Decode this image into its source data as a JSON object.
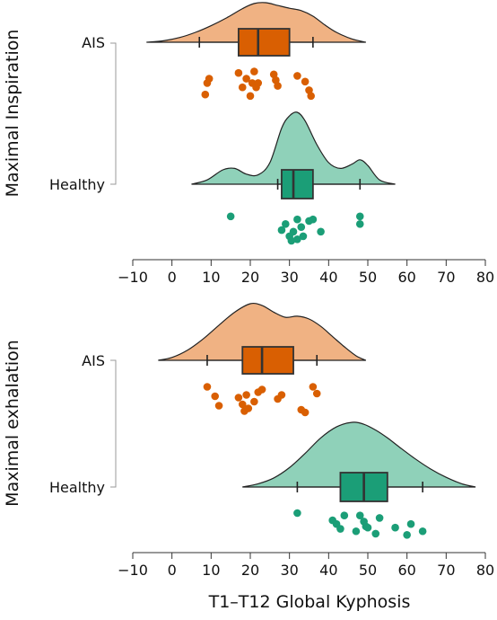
{
  "colors": {
    "ais_density": "#f0b283",
    "ais_box": "#d95f02",
    "ais_points": "#d95f02",
    "healthy_density": "#8fd1b9",
    "healthy_box": "#1b9e77",
    "healthy_points": "#1b9e77",
    "axis": "#333333",
    "outline": "#333333"
  },
  "chart_data": [
    {
      "type": "raincloud",
      "panel_label": "Maximal Inspiration",
      "xlabel": "",
      "xlim": [
        -10,
        80
      ],
      "x_ticks": [
        -10,
        0,
        10,
        20,
        30,
        40,
        50,
        60,
        70,
        80
      ],
      "groups": [
        {
          "name": "AIS",
          "box": {
            "whisker_low": 7,
            "q1": 17,
            "median": 22,
            "q3": 30,
            "whisker_high": 36
          },
          "density": {
            "x": [
              -6.5,
              -2,
              2,
              6,
              10,
              14,
              18,
              21,
              24,
              27,
              30,
              33,
              36,
              39,
              42,
              46,
              49.5
            ],
            "y": [
              0.0,
              0.04,
              0.12,
              0.25,
              0.42,
              0.62,
              0.85,
              0.98,
              1.0,
              0.93,
              0.86,
              0.8,
              0.66,
              0.44,
              0.25,
              0.08,
              0.0
            ]
          },
          "points": [
            8.5,
            9,
            9.5,
            17,
            18,
            19,
            20,
            20.5,
            21,
            21.5,
            22,
            26,
            26.5,
            27,
            32,
            34,
            35,
            35.5
          ],
          "jitter": [
            0.85,
            0.45,
            0.3,
            0.1,
            0.6,
            0.3,
            0.9,
            0.45,
            0.05,
            0.6,
            0.45,
            0.15,
            0.35,
            0.55,
            0.2,
            0.4,
            0.7,
            0.9
          ]
        },
        {
          "name": "Healthy",
          "box": {
            "whisker_low": 27,
            "q1": 28,
            "median": 31,
            "q3": 36,
            "whisker_high": 48
          },
          "density": {
            "x": [
              5,
              9,
              13,
              16,
              19,
              22,
              25,
              28,
              30,
              32,
              34,
              37,
              40,
              43,
              46,
              48,
              50,
              53,
              57
            ],
            "y": [
              0.0,
              0.06,
              0.2,
              0.22,
              0.14,
              0.13,
              0.3,
              0.78,
              0.95,
              1.0,
              0.88,
              0.55,
              0.3,
              0.22,
              0.28,
              0.34,
              0.26,
              0.06,
              0.0
            ]
          },
          "points": [
            15,
            28,
            29,
            30,
            30.5,
            31,
            32,
            32,
            33,
            33.5,
            35,
            36,
            38,
            48,
            48
          ],
          "jitter": [
            0.2,
            0.65,
            0.45,
            0.85,
            1.0,
            0.7,
            0.95,
            0.3,
            0.55,
            0.85,
            0.35,
            0.3,
            0.7,
            0.2,
            0.45
          ]
        }
      ]
    },
    {
      "type": "raincloud",
      "panel_label": "Maximal exhalation",
      "xlabel": "T1–T12 Global Kyphosis",
      "xlim": [
        -10,
        80
      ],
      "x_ticks": [
        -10,
        0,
        10,
        20,
        30,
        40,
        50,
        60,
        70,
        80
      ],
      "groups": [
        {
          "name": "AIS",
          "box": {
            "whisker_low": 9,
            "q1": 18,
            "median": 23,
            "q3": 31,
            "whisker_high": 37
          },
          "density": {
            "x": [
              -3.5,
              0,
              4,
              8,
              12,
              16,
              20,
              23,
              26,
              29,
              32,
              35,
              38,
              41,
              44,
              47,
              49.5
            ],
            "y": [
              0.0,
              0.05,
              0.18,
              0.38,
              0.62,
              0.85,
              1.0,
              0.97,
              0.85,
              0.76,
              0.78,
              0.73,
              0.6,
              0.42,
              0.24,
              0.08,
              0.0
            ]
          },
          "points": [
            9,
            11,
            12,
            17,
            18,
            18.5,
            19,
            19.5,
            21,
            22,
            23,
            27,
            28,
            33,
            34,
            36,
            37
          ],
          "jitter": [
            0.05,
            0.4,
            0.75,
            0.45,
            0.7,
            0.95,
            0.35,
            0.85,
            0.6,
            0.25,
            0.15,
            0.5,
            0.35,
            0.9,
            1.0,
            0.05,
            0.3
          ]
        },
        {
          "name": "Healthy",
          "box": {
            "whisker_low": 32,
            "q1": 43,
            "median": 49,
            "q3": 55,
            "whisker_high": 64
          },
          "density": {
            "x": [
              18,
              22,
              26,
              30,
              34,
              38,
              42,
              46,
              49,
              52,
              55,
              58,
              62,
              66,
              70,
              74,
              77.5
            ],
            "y": [
              0.0,
              0.05,
              0.14,
              0.3,
              0.52,
              0.76,
              0.93,
              1.0,
              0.97,
              0.88,
              0.76,
              0.62,
              0.44,
              0.28,
              0.15,
              0.05,
              0.0
            ]
          },
          "points": [
            32,
            41,
            42,
            43,
            44,
            47,
            48,
            49,
            49.5,
            50,
            52,
            53,
            57,
            60,
            61,
            64
          ],
          "jitter": [
            0.0,
            0.3,
            0.45,
            0.65,
            0.1,
            0.75,
            0.1,
            0.35,
            0.55,
            0.6,
            0.85,
            0.2,
            0.6,
            0.9,
            0.45,
            0.75
          ]
        }
      ]
    }
  ]
}
